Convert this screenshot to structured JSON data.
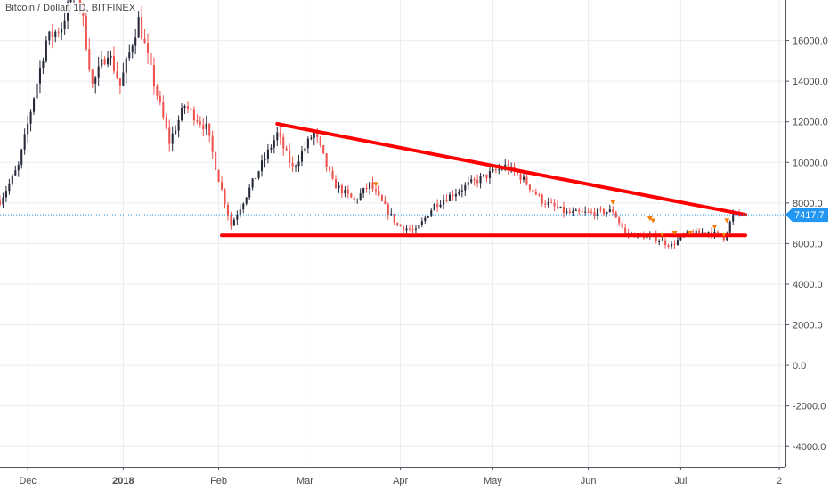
{
  "chart_data": {
    "type": "candlestick",
    "title": "Bitcoin / Dollar, 1D, BITFINEX",
    "xlabel": "",
    "ylabel": "",
    "ylim": [
      -5000,
      18000
    ],
    "y_ticks": [
      16000,
      14000,
      12000,
      10000,
      8000,
      6000,
      4000,
      2000,
      0,
      -2000,
      -4000
    ],
    "y_tick_labels": [
      "16000.0",
      "14000.0",
      "12000.0",
      "10000.0",
      "8000.0",
      "6000.0",
      "4000.0",
      "2000.0",
      "0.0",
      "-2000.0",
      "-4000.0"
    ],
    "x_ticks": [
      {
        "label": "Dec",
        "date": "2017-12-01"
      },
      {
        "label": "2018",
        "date": "2018-01-01",
        "bold": true
      },
      {
        "label": "Feb",
        "date": "2018-02-01"
      },
      {
        "label": "Mar",
        "date": "2018-03-01"
      },
      {
        "label": "Apr",
        "date": "2018-04-01"
      },
      {
        "label": "May",
        "date": "2018-05-01"
      },
      {
        "label": "Jun",
        "date": "2018-06-01"
      },
      {
        "label": "Jul",
        "date": "2018-07-01"
      },
      {
        "label": "2",
        "date": "2018-08-02"
      }
    ],
    "x_start": "2017-11-22",
    "x_end": "2018-08-04",
    "grid": true,
    "last_price": 7417.7,
    "last_price_label": "7417.7",
    "colors": {
      "up": "#26293a",
      "down": "#ef5350",
      "trendline": "#ff0000",
      "grid": "#e9ecf1",
      "price_tag": "#2196f3",
      "marker": "#f57c00"
    },
    "anchors": [
      [
        "2017-11-22",
        8100
      ],
      [
        "2017-11-28",
        9800
      ],
      [
        "2017-12-07",
        16000
      ],
      [
        "2017-12-12",
        16700
      ],
      [
        "2017-12-17",
        19000
      ],
      [
        "2017-12-22",
        13800
      ],
      [
        "2017-12-27",
        15500
      ],
      [
        "2017-12-31",
        13800
      ],
      [
        "2018-01-06",
        17000
      ],
      [
        "2018-01-10",
        14500
      ],
      [
        "2018-01-16",
        11000
      ],
      [
        "2018-01-21",
        12800
      ],
      [
        "2018-01-28",
        11700
      ],
      [
        "2018-02-01",
        9200
      ],
      [
        "2018-02-05",
        6900
      ],
      [
        "2018-02-10",
        8400
      ],
      [
        "2018-02-20",
        11400
      ],
      [
        "2018-02-25",
        9700
      ],
      [
        "2018-03-04",
        11500
      ],
      [
        "2018-03-10",
        9000
      ],
      [
        "2018-03-17",
        8100
      ],
      [
        "2018-03-22",
        8900
      ],
      [
        "2018-03-31",
        6900
      ],
      [
        "2018-04-06",
        6600
      ],
      [
        "2018-04-12",
        7900
      ],
      [
        "2018-04-23",
        8900
      ],
      [
        "2018-05-05",
        9800
      ],
      [
        "2018-05-10",
        9300
      ],
      [
        "2018-05-17",
        8100
      ],
      [
        "2018-05-25",
        7500
      ],
      [
        "2018-06-01",
        7500
      ],
      [
        "2018-06-09",
        7600
      ],
      [
        "2018-06-13",
        6500
      ],
      [
        "2018-06-22",
        6300
      ],
      [
        "2018-06-28",
        5900
      ],
      [
        "2018-07-02",
        6400
      ],
      [
        "2018-07-10",
        6600
      ],
      [
        "2018-07-15",
        6300
      ],
      [
        "2018-07-18",
        7400
      ],
      [
        "2018-07-20",
        7417.7
      ]
    ],
    "trendlines": [
      {
        "name": "descending-resistance",
        "start": [
          "2018-02-20",
          11900
        ],
        "end": [
          "2018-07-22",
          7417.7
        ]
      },
      {
        "name": "horizontal-support",
        "start": [
          "2018-02-02",
          6400
        ],
        "end": [
          "2018-07-22",
          6400
        ]
      }
    ],
    "markers": [
      {
        "date": "2018-03-24",
        "price": 8900
      },
      {
        "date": "2018-06-09",
        "price": 8000
      },
      {
        "date": "2018-06-21",
        "price": 7200
      },
      {
        "date": "2018-06-22",
        "price": 7100
      },
      {
        "date": "2018-06-25",
        "price": 6400
      },
      {
        "date": "2018-06-29",
        "price": 6500
      },
      {
        "date": "2018-07-04",
        "price": 6500
      },
      {
        "date": "2018-07-12",
        "price": 6800
      },
      {
        "date": "2018-07-15",
        "price": 6400
      },
      {
        "date": "2018-07-16",
        "price": 7100
      }
    ]
  }
}
